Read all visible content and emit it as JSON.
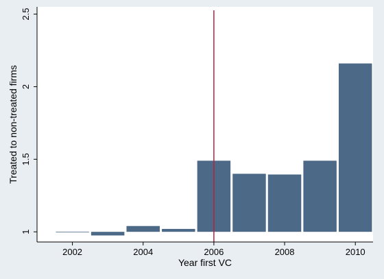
{
  "chart_data": {
    "type": "bar",
    "title": "",
    "xlabel": "Year first VC",
    "ylabel": "Treated to non-treated firms",
    "x": [
      2002,
      2003,
      2004,
      2005,
      2006,
      2007,
      2008,
      2009,
      2010
    ],
    "values": [
      1.0,
      0.975,
      1.04,
      1.02,
      1.49,
      1.4,
      1.395,
      1.49,
      2.16
    ],
    "baseline": 1.0,
    "xlim": [
      2001,
      2010.5
    ],
    "ylim": [
      0.93,
      2.55
    ],
    "xticks": [
      2002,
      2004,
      2006,
      2008,
      2010
    ],
    "yticks": [
      1,
      1.5,
      2,
      2.5
    ],
    "reference_line_x": 2006,
    "grid": false,
    "colors": {
      "bar": "#4c6a87",
      "reference_line": "#b4223f",
      "plot_background": "#ffffff",
      "outer_background": "#e9eef2",
      "axis": "#000000"
    }
  }
}
